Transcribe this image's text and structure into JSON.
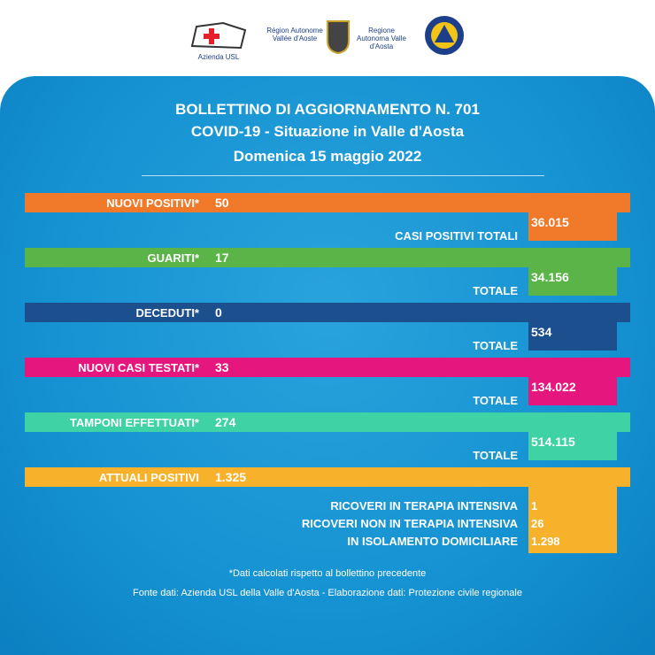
{
  "header": {
    "logos": [
      "Azienda USL",
      "Région Autonome Vallée d'Aoste",
      "Regione Autonoma Valle d'Aosta"
    ]
  },
  "title": {
    "line1": "BOLLETTINO DI AGGIORNAMENTO N. 701",
    "line2": "COVID-19 - Situazione in Valle d'Aosta",
    "line3": "Domenica 15 maggio 2022"
  },
  "rows": [
    {
      "label": "NUOVI POSITIVI*",
      "value": "50",
      "total_label": "CASI POSITIVI TOTALI",
      "total": "36.015",
      "color": "#f07a2a"
    },
    {
      "label": "GUARITI*",
      "value": "17",
      "total_label": "TOTALE",
      "total": "34.156",
      "color": "#5ab447"
    },
    {
      "label": "DECEDUTI*",
      "value": "0",
      "total_label": "TOTALE",
      "total": "534",
      "color": "#1c4f8e"
    },
    {
      "label": "NUOVI CASI TESTATI*",
      "value": "33",
      "total_label": "TOTALE",
      "total": "134.022",
      "color": "#e5177e"
    },
    {
      "label": "TAMPONI EFFETTUATI*",
      "value": "274",
      "total_label": "TOTALE",
      "total": "514.115",
      "color": "#3ed2a4"
    }
  ],
  "current": {
    "label": "ATTUALI POSITIVI",
    "value": "1.325",
    "color": "#f7b12a",
    "details": [
      {
        "label": "RICOVERI IN TERAPIA INTENSIVA",
        "value": "1"
      },
      {
        "label": "RICOVERI NON IN TERAPIA INTENSIVA",
        "value": "26"
      },
      {
        "label": "IN ISOLAMENTO DOMICILIARE",
        "value": "1.298"
      }
    ]
  },
  "footer": {
    "note": "*Dati calcolati rispetto al bollettino precedente",
    "source": "Fonte dati: Azienda USL della Valle d'Aosta - Elaborazione dati: Protezione civile regionale"
  }
}
